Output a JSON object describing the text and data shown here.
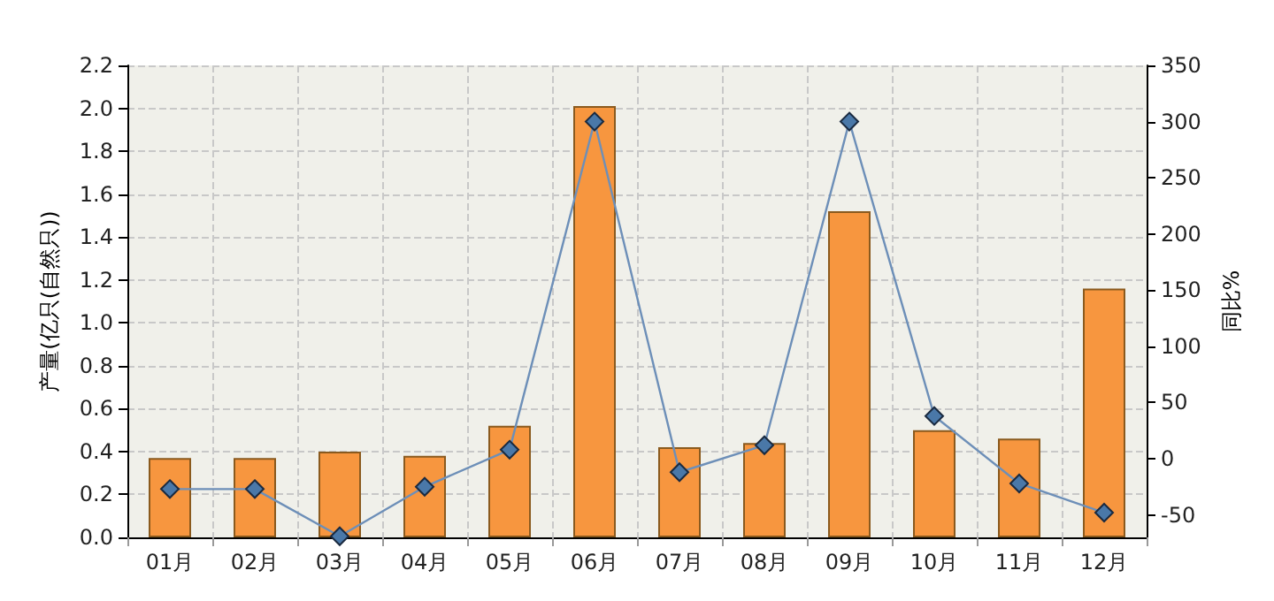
{
  "chart_data": {
    "type": "bar",
    "ylabel": "产量(亿只(自然只))",
    "y2label": "同比%",
    "categories": [
      "01月",
      "02月",
      "03月",
      "04月",
      "05月",
      "06月",
      "07月",
      "08月",
      "09月",
      "10月",
      "11月",
      "12月"
    ],
    "series": [
      {
        "color": "#f7963f",
        "values": [
          0.37,
          0.37,
          0.4,
          0.38,
          0.52,
          2.01,
          0.42,
          0.44,
          1.52,
          0.5,
          0.46,
          1.16
        ]
      },
      {
        "type": "line",
        "axis": "y2",
        "color": "#6d8fb8",
        "marker": "diamond",
        "line_style": "solid",
        "values": [
          -27,
          -27,
          -69,
          -25,
          8,
          300,
          -12,
          12,
          300,
          38,
          -22,
          -48
        ]
      }
    ],
    "ylim": [
      0,
      2.2
    ],
    "yticks": [
      {
        "value": 0,
        "label": "0.0"
      },
      0.2,
      0.4,
      0.6,
      0.8,
      {
        "value": 1,
        "label": "1.0"
      },
      1.2,
      1.4,
      1.6,
      1.8,
      {
        "value": 2,
        "label": "2.0"
      },
      2.2
    ],
    "y2lim": [
      -70,
      350
    ],
    "y2ticks": [
      -50,
      0,
      50,
      100,
      150,
      200,
      250,
      300,
      350
    ],
    "grid": true
  }
}
